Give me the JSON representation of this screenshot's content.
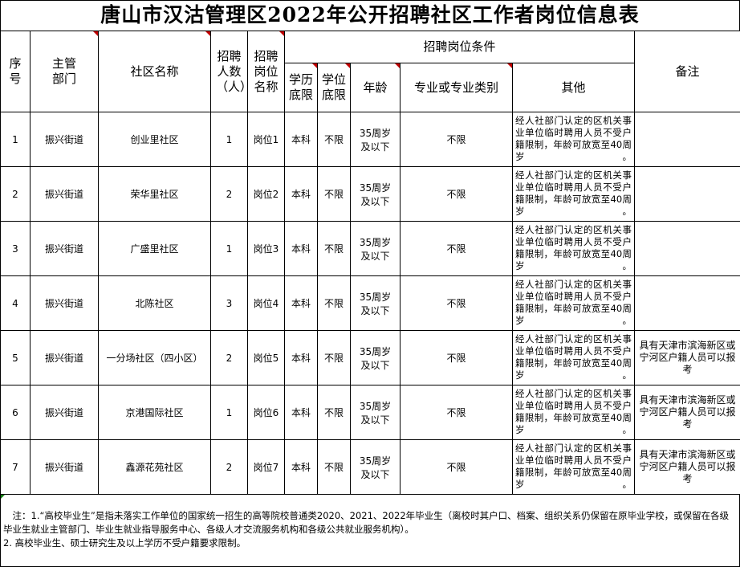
{
  "title": "唐山市汉沽管理区2022年公开招聘社区工作者岗位信息表",
  "headers": {
    "seq": "序号",
    "dept": "主管部门",
    "community": "社区名称",
    "count": "招聘人数（人）",
    "post": "招聘岗位名称",
    "conditions": "招聘岗位条件",
    "education": "学历底限",
    "degree": "学位底限",
    "age": "年龄",
    "major": "专业或专业类别",
    "other": "其他",
    "remark": "备注"
  },
  "rows": [
    {
      "seq": "1",
      "dept": "振兴街道",
      "community": "创业里社区",
      "count": "1",
      "post": "岗位1",
      "education": "本科",
      "degree": "不限",
      "age": "35周岁及以下",
      "major": "不限",
      "other": "经人社部门认定的区机关事业单位临时聘用人员不受户籍限制，年龄可放宽至40周岁。",
      "remark": ""
    },
    {
      "seq": "2",
      "dept": "振兴街道",
      "community": "荣华里社区",
      "count": "2",
      "post": "岗位2",
      "education": "本科",
      "degree": "不限",
      "age": "35周岁及以下",
      "major": "不限",
      "other": "经人社部门认定的区机关事业单位临时聘用人员不受户籍限制，年龄可放宽至40周岁。",
      "remark": ""
    },
    {
      "seq": "3",
      "dept": "振兴街道",
      "community": "广盛里社区",
      "count": "1",
      "post": "岗位3",
      "education": "本科",
      "degree": "不限",
      "age": "35周岁及以下",
      "major": "不限",
      "other": "经人社部门认定的区机关事业单位临时聘用人员不受户籍限制，年龄可放宽至40周岁。",
      "remark": ""
    },
    {
      "seq": "4",
      "dept": "振兴街道",
      "community": "北陈社区",
      "count": "3",
      "post": "岗位4",
      "education": "本科",
      "degree": "不限",
      "age": "35周岁及以下",
      "major": "不限",
      "other": "经人社部门认定的区机关事业单位临时聘用人员不受户籍限制，年龄可放宽至40周岁。",
      "remark": ""
    },
    {
      "seq": "5",
      "dept": "振兴街道",
      "community": "一分场社区（四小区）",
      "count": "2",
      "post": "岗位5",
      "education": "本科",
      "degree": "不限",
      "age": "35周岁及以下",
      "major": "不限",
      "other": "经人社部门认定的区机关事业单位临时聘用人员不受户籍限制，年龄可放宽至40周岁。",
      "remark": "具有天津市滨海新区或宁河区户籍人员可以报考"
    },
    {
      "seq": "6",
      "dept": "振兴街道",
      "community": "京港国际社区",
      "count": "1",
      "post": "岗位6",
      "education": "本科",
      "degree": "不限",
      "age": "35周岁及以下",
      "major": "不限",
      "other": "经人社部门认定的区机关事业单位临时聘用人员不受户籍限制，年龄可放宽至40周岁。",
      "remark": "具有天津市滨海新区或宁河区户籍人员可以报考"
    },
    {
      "seq": "7",
      "dept": "振兴街道",
      "community": "鑫源花苑社区",
      "count": "2",
      "post": "岗位7",
      "education": "本科",
      "degree": "不限",
      "age": "35周岁及以下",
      "major": "不限",
      "other": "经人社部门认定的区机关事业单位临时聘用人员不受户籍限制，年龄可放宽至40周岁。",
      "remark": "具有天津市滨海新区或宁河区户籍人员可以报考"
    }
  ],
  "notes": [
    "　注：1.“高校毕业生”是指未落实工作单位的国家统一招生的高等院校普通类2020、2021、2022年毕业生（离校时其户口、档案、组织关系仍保留在原毕业学校，或保留在各级毕业生就业主管部门、毕业生就业指导服务中心、各级人才交流服务机构和各级公共就业服务机构）。",
    "2. 高校毕业生、硕士研究生及以上学历不受户籍要求限制。"
  ]
}
